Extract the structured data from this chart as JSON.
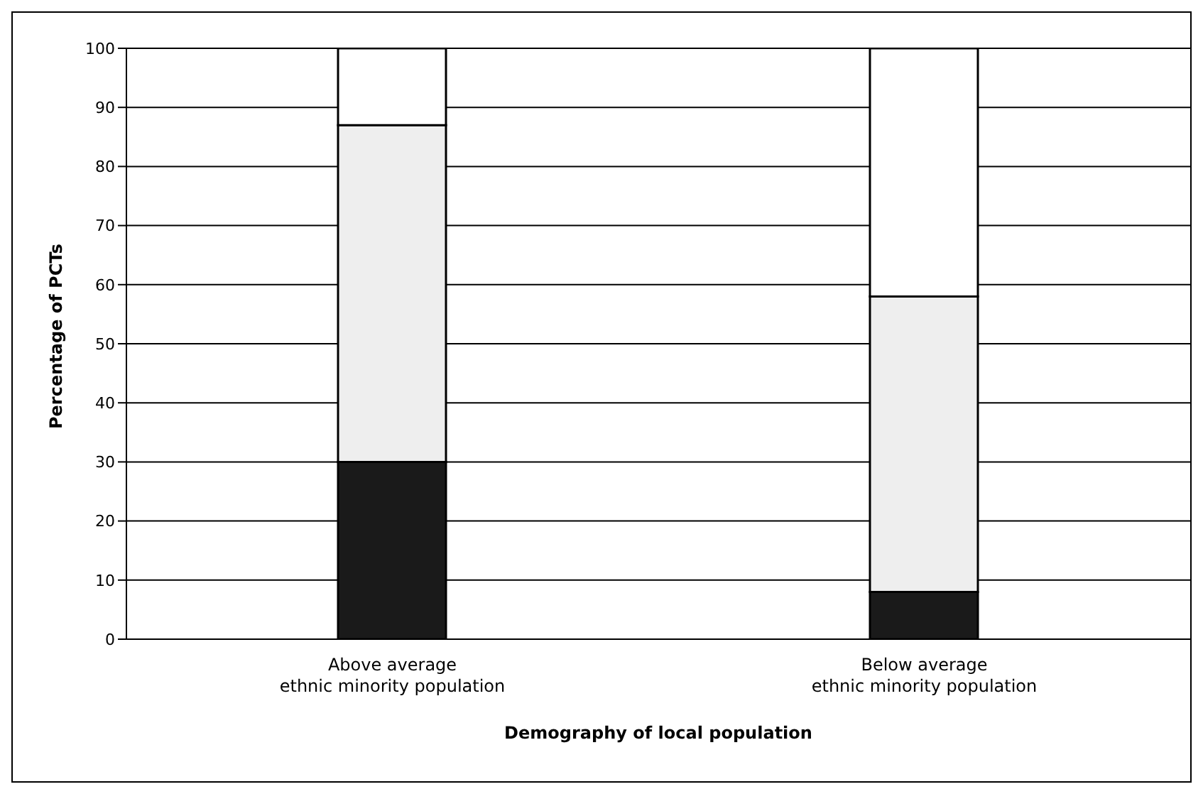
{
  "chart_data": {
    "type": "bar",
    "stacked": true,
    "xlabel": "Demography of local population",
    "ylabel": "Percentage of PCTs",
    "categories": [
      "Above average\nethnic minority population",
      "Below average\nethnic minority population"
    ],
    "series": [
      {
        "color": "#1a1a1a",
        "values": [
          30,
          8
        ]
      },
      {
        "color": "#eeeeee",
        "values": [
          57,
          50
        ]
      },
      {
        "color": "#ffffff",
        "values": [
          13,
          42
        ]
      }
    ],
    "ylim": [
      0,
      100
    ],
    "yticks": [
      0,
      10,
      20,
      30,
      40,
      50,
      60,
      70,
      80,
      90,
      100
    ],
    "grid": "y",
    "legend": false
  }
}
